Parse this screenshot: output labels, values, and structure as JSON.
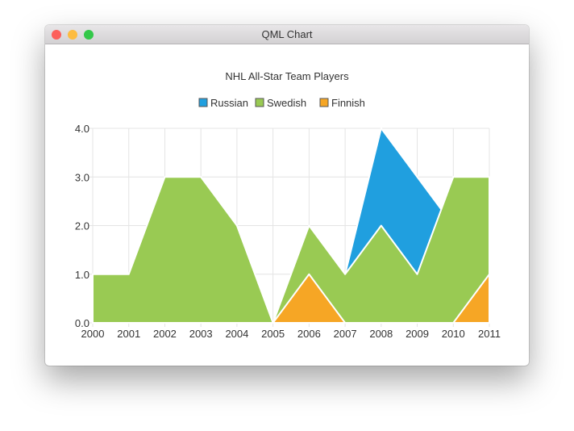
{
  "window": {
    "title": "QML Chart",
    "buttons": {
      "close": "#fc605b",
      "minimize": "#fdbc40",
      "zoom": "#34c84a"
    }
  },
  "chart_data": {
    "type": "area",
    "title": "NHL All-Star Team Players",
    "legend_position": "top",
    "grid": true,
    "xlim": [
      2000,
      2011
    ],
    "ylim": [
      0,
      4
    ],
    "x_ticks": [
      "2000",
      "2001",
      "2002",
      "2003",
      "2004",
      "2005",
      "2006",
      "2007",
      "2008",
      "2009",
      "2010",
      "2011"
    ],
    "y_ticks": [
      "0.0",
      "1.0",
      "2.0",
      "3.0",
      "4.0"
    ],
    "x": [
      2000,
      2001,
      2002,
      2003,
      2004,
      2005,
      2006,
      2007,
      2008,
      2009,
      2010,
      2011
    ],
    "series": [
      {
        "name": "Russian",
        "color": "#209fdf",
        "values": [
          1,
          1,
          1,
          1,
          1,
          0,
          1,
          1,
          4,
          3,
          2,
          1
        ]
      },
      {
        "name": "Swedish",
        "color": "#99ca53",
        "values": [
          1,
          1,
          3,
          3,
          2,
          0,
          2,
          1,
          2,
          1,
          3,
          3
        ]
      },
      {
        "name": "Finnish",
        "color": "#f6a625",
        "values": [
          0,
          0,
          0,
          0,
          0,
          0,
          1,
          0,
          0,
          0,
          0,
          1
        ]
      }
    ]
  }
}
